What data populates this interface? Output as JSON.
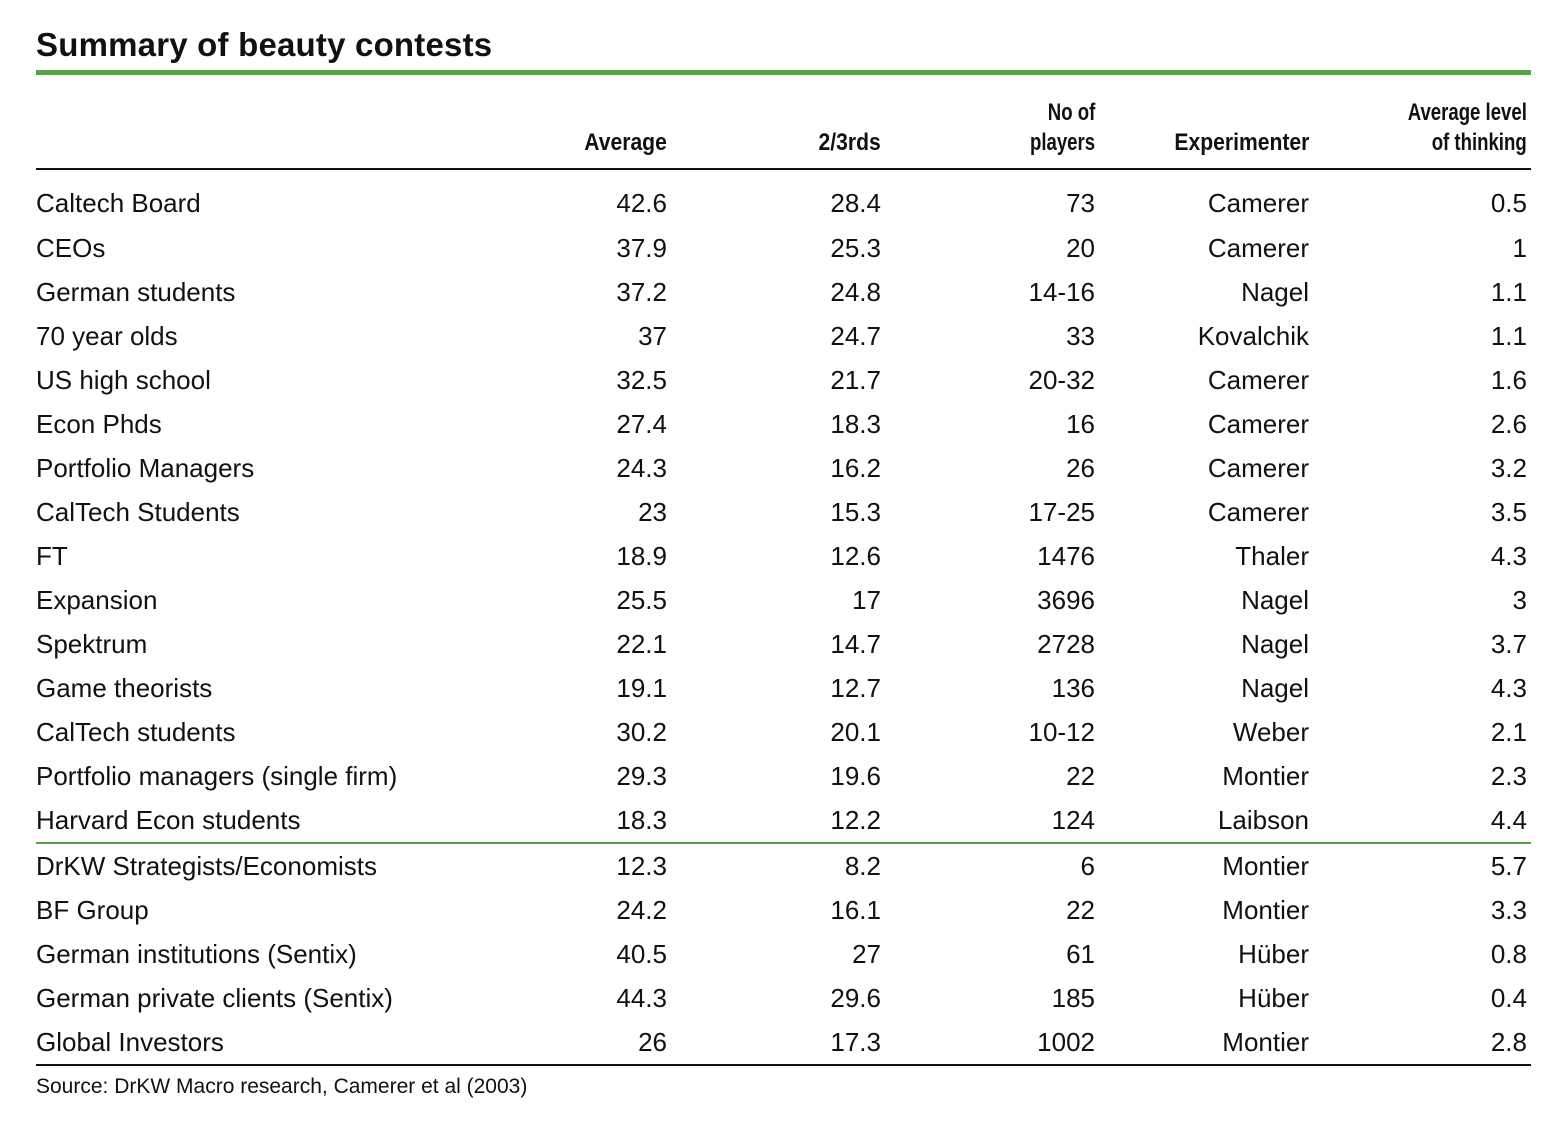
{
  "title": "Summary of beauty contests",
  "columns": {
    "label": "",
    "average": "Average",
    "two_thirds": "2/3rds",
    "players_line1": "No of",
    "players_line2": "players",
    "experimenter": "Experimenter",
    "level_line1": "Average level",
    "level_line2": "of thinking"
  },
  "rows": [
    {
      "group": "Caltech Board",
      "average": "42.6",
      "two_thirds": "28.4",
      "players": "73",
      "experimenter": "Camerer",
      "level": "0.5"
    },
    {
      "group": "CEOs",
      "average": "37.9",
      "two_thirds": "25.3",
      "players": "20",
      "experimenter": "Camerer",
      "level": "1"
    },
    {
      "group": "German students",
      "average": "37.2",
      "two_thirds": "24.8",
      "players": "14-16",
      "experimenter": "Nagel",
      "level": "1.1"
    },
    {
      "group": "70 year olds",
      "average": "37",
      "two_thirds": "24.7",
      "players": "33",
      "experimenter": "Kovalchik",
      "level": "1.1"
    },
    {
      "group": "US high school",
      "average": "32.5",
      "two_thirds": "21.7",
      "players": "20-32",
      "experimenter": "Camerer",
      "level": "1.6"
    },
    {
      "group": "Econ Phds",
      "average": "27.4",
      "two_thirds": "18.3",
      "players": "16",
      "experimenter": "Camerer",
      "level": "2.6"
    },
    {
      "group": "Portfolio Managers",
      "average": "24.3",
      "two_thirds": "16.2",
      "players": "26",
      "experimenter": "Camerer",
      "level": "3.2"
    },
    {
      "group": "CalTech Students",
      "average": "23",
      "two_thirds": "15.3",
      "players": "17-25",
      "experimenter": "Camerer",
      "level": "3.5"
    },
    {
      "group": "FT",
      "average": "18.9",
      "two_thirds": "12.6",
      "players": "1476",
      "experimenter": "Thaler",
      "level": "4.3"
    },
    {
      "group": "Expansion",
      "average": "25.5",
      "two_thirds": "17",
      "players": "3696",
      "experimenter": "Nagel",
      "level": "3"
    },
    {
      "group": "Spektrum",
      "average": "22.1",
      "two_thirds": "14.7",
      "players": "2728",
      "experimenter": "Nagel",
      "level": "3.7"
    },
    {
      "group": "Game theorists",
      "average": "19.1",
      "two_thirds": "12.7",
      "players": "136",
      "experimenter": "Nagel",
      "level": "4.3"
    },
    {
      "group": "CalTech students",
      "average": "30.2",
      "two_thirds": "20.1",
      "players": "10-12",
      "experimenter": "Weber",
      "level": "2.1"
    },
    {
      "group": "Portfolio managers (single firm)",
      "average": "29.3",
      "two_thirds": "19.6",
      "players": "22",
      "experimenter": "Montier",
      "level": "2.3"
    },
    {
      "group": "Harvard Econ students",
      "average": "18.3",
      "two_thirds": "12.2",
      "players": "124",
      "experimenter": "Laibson",
      "level": "4.4"
    },
    {
      "group": "DrKW Strategists/Economists",
      "average": "12.3",
      "two_thirds": "8.2",
      "players": "6",
      "experimenter": "Montier",
      "level": "5.7"
    },
    {
      "group": "BF Group",
      "average": "24.2",
      "two_thirds": "16.1",
      "players": "22",
      "experimenter": "Montier",
      "level": "3.3"
    },
    {
      "group": "German institutions (Sentix)",
      "average": "40.5",
      "two_thirds": "27",
      "players": "61",
      "experimenter": "Hüber",
      "level": "0.8"
    },
    {
      "group": "German private clients (Sentix)",
      "average": "44.3",
      "two_thirds": "29.6",
      "players": "185",
      "experimenter": "Hüber",
      "level": "0.4"
    },
    {
      "group": "Global Investors",
      "average": "26",
      "two_thirds": "17.3",
      "players": "1002",
      "experimenter": "Montier",
      "level": "2.8"
    }
  ],
  "source": "Source: DrKW Macro research, Camerer et al (2003)",
  "colors": {
    "accent_rule": "#5aa046",
    "text": "#111111"
  }
}
